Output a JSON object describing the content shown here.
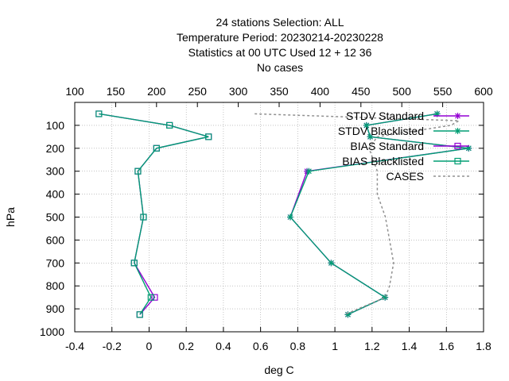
{
  "chart_data": {
    "type": "line",
    "title_lines": [
      "24 stations Selection: ALL",
      "Temperature  Period: 20230214-20230228",
      "Statistics at 00 UTC  Used  12  + 12 36",
      "No cases"
    ],
    "xlabel": "deg C",
    "ylabel": "hPa",
    "xlim": [
      -0.4,
      1.8
    ],
    "x_ticks": [
      "-0.4",
      "-0.2",
      "0",
      "0.2",
      "0.4",
      "0.6",
      "0.8",
      "1",
      "1.2",
      "1.4",
      "1.6",
      "1.8"
    ],
    "x2lim": [
      100,
      600
    ],
    "x2_ticks": [
      "100",
      "150",
      "200",
      "250",
      "300",
      "350",
      "400",
      "450",
      "500",
      "550",
      "600"
    ],
    "ylim": [
      1000,
      0
    ],
    "y_ticks": [
      "100",
      "200",
      "300",
      "400",
      "500",
      "600",
      "700",
      "800",
      "900",
      "1000"
    ],
    "grid": true,
    "legend_position": "top-right",
    "series": [
      {
        "name": "STDV Standard",
        "color": "#9400d3",
        "marker": "star",
        "axis": "x",
        "points": [
          [
            1.55,
            50
          ],
          [
            1.17,
            100
          ],
          [
            1.19,
            150
          ],
          [
            1.72,
            200
          ],
          [
            0.85,
            300
          ],
          [
            0.76,
            500
          ],
          [
            0.98,
            700
          ],
          [
            1.27,
            850
          ],
          [
            1.07,
            925
          ]
        ]
      },
      {
        "name": "STDV Blacklisted",
        "color": "#009e73",
        "marker": "star",
        "axis": "x",
        "points": [
          [
            1.55,
            50
          ],
          [
            1.17,
            100
          ],
          [
            1.19,
            150
          ],
          [
            1.72,
            200
          ],
          [
            0.86,
            300
          ],
          [
            0.76,
            500
          ],
          [
            0.98,
            700
          ],
          [
            1.27,
            850
          ],
          [
            1.07,
            925
          ]
        ]
      },
      {
        "name": "BIAS Standard",
        "color": "#9400d3",
        "marker": "square",
        "axis": "x",
        "points": [
          [
            -0.27,
            50
          ],
          [
            0.11,
            100
          ],
          [
            0.32,
            150
          ],
          [
            0.04,
            200
          ],
          [
            -0.06,
            300
          ],
          [
            -0.03,
            500
          ],
          [
            -0.08,
            700
          ],
          [
            0.03,
            850
          ],
          [
            -0.05,
            925
          ]
        ]
      },
      {
        "name": "BIAS Blacklisted",
        "color": "#009e73",
        "marker": "square",
        "axis": "x",
        "points": [
          [
            -0.27,
            50
          ],
          [
            0.11,
            100
          ],
          [
            0.32,
            150
          ],
          [
            0.04,
            200
          ],
          [
            -0.06,
            300
          ],
          [
            -0.03,
            500
          ],
          [
            -0.08,
            700
          ],
          [
            0.01,
            850
          ],
          [
            -0.05,
            925
          ]
        ]
      },
      {
        "name": "CASES",
        "color": "#909090",
        "dashed": true,
        "axis": "x2",
        "points": [
          [
            320,
            50
          ],
          [
            570,
            80
          ],
          [
            560,
            100
          ],
          [
            470,
            150
          ],
          [
            460,
            200
          ],
          [
            465,
            250
          ],
          [
            470,
            300
          ],
          [
            470,
            400
          ],
          [
            480,
            500
          ],
          [
            485,
            600
          ],
          [
            490,
            700
          ],
          [
            485,
            800
          ],
          [
            480,
            850
          ],
          [
            430,
            925
          ]
        ]
      }
    ]
  }
}
